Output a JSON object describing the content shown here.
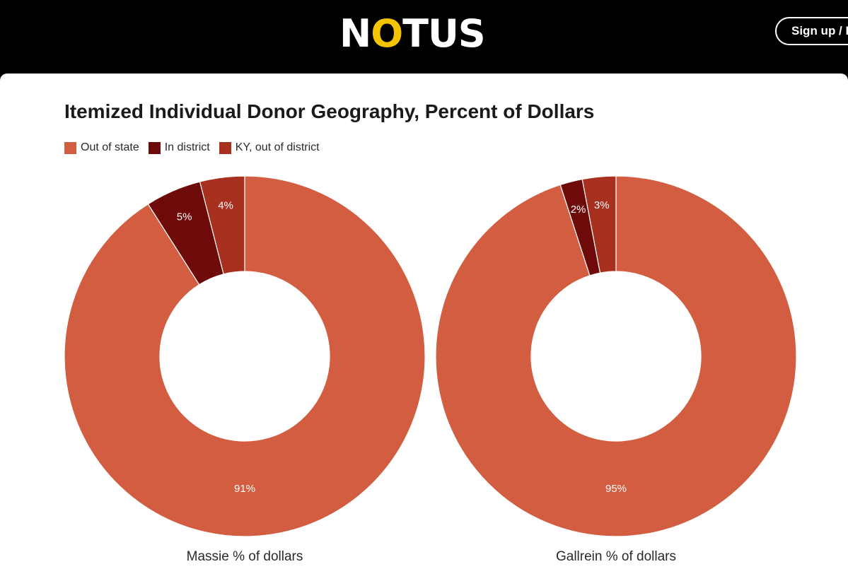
{
  "header": {
    "logo_text_pre": "N",
    "logo_text_o": "O",
    "logo_text_post": "TUS",
    "signup_label": "Sign up / L",
    "accent_color": "#f5c400"
  },
  "chart_data": {
    "type": "donut",
    "title": "Itemized Individual Donor Geography, Percent of Dollars",
    "legend_position": "top-left",
    "series_names": [
      "Out of state",
      "In district",
      "KY, out of district"
    ],
    "colors": [
      "#d35d40",
      "#6e0a0a",
      "#a8301f"
    ],
    "charts": [
      {
        "caption": "Massie % of dollars",
        "values": [
          91,
          5,
          4
        ],
        "labels": [
          "91%",
          "5%",
          "4%"
        ]
      },
      {
        "caption": "Gallrein % of dollars",
        "values": [
          95,
          2,
          3
        ],
        "labels": [
          "95%",
          "2%",
          "3%"
        ]
      }
    ]
  }
}
